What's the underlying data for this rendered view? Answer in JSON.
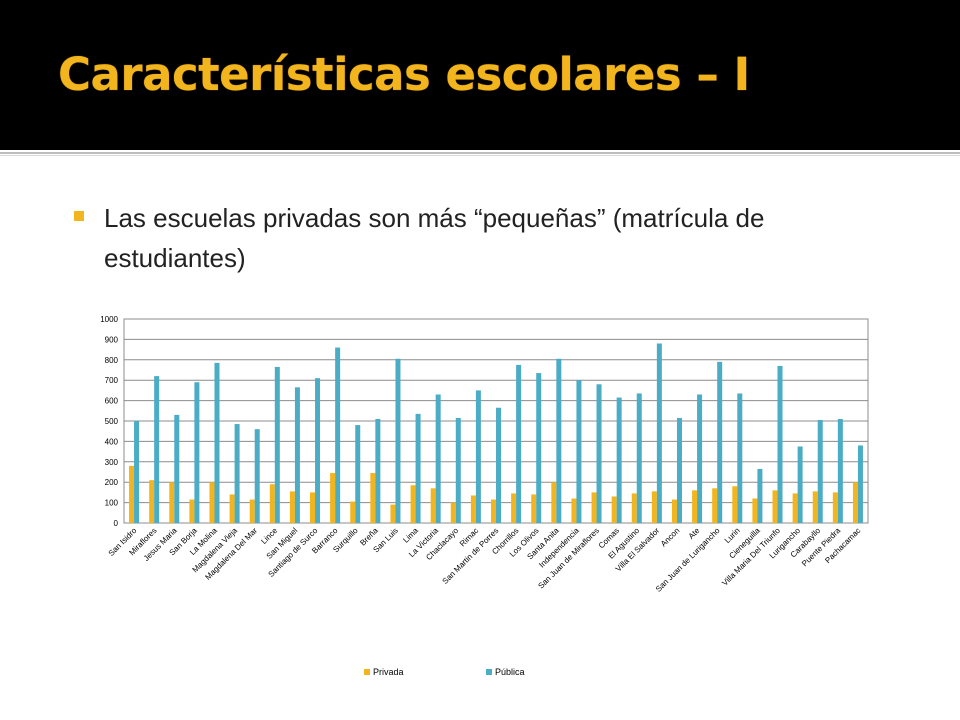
{
  "slide": {
    "title": "Características escolares – I",
    "bullet": "Las escuelas privadas son más “pequeñas” (matrícula de estudiantes)"
  },
  "colors": {
    "title_bg": "#000000",
    "title_text": "#f2b51d",
    "bullet": "#f2b51d",
    "privada": "#f2b51d",
    "publica": "#4bacc6",
    "grid": "#8c8c8c"
  },
  "chart_data": {
    "type": "bar",
    "ylim": [
      0,
      1000
    ],
    "yticks": [
      0,
      100,
      200,
      300,
      400,
      500,
      600,
      700,
      800,
      900,
      1000
    ],
    "grid": true,
    "legend_position": "bottom",
    "categories": [
      "San Isidro",
      "Miraflores",
      "Jesus Maria",
      "San Borja",
      "La Molina",
      "Magdalena Vieja",
      "Magdalena Del Mar",
      "Lince",
      "San Miguel",
      "Santiago de Surco",
      "Barranco",
      "Surquillo",
      "Breña",
      "San Luis",
      "Lima",
      "La Victoria",
      "Chaclacayo",
      "Rimac",
      "San Martin de Porres",
      "Chorrillos",
      "Los Olivos",
      "Santa Anita",
      "Independencia",
      "San Juan de Miraflores",
      "Comas",
      "El Agustino",
      "Villa El Salvador",
      "Ancon",
      "Ate",
      "San Juan de Lurigancho",
      "Lurin",
      "Cieneguilla",
      "Villa Maria Del Triunfo",
      "Lurigancho",
      "Carabayllo",
      "Puente Piedra",
      "Pachacamac"
    ],
    "series": [
      {
        "name": "Privada",
        "values": [
          280,
          210,
          200,
          115,
          200,
          140,
          115,
          190,
          155,
          150,
          245,
          105,
          245,
          90,
          185,
          170,
          100,
          135,
          115,
          145,
          140,
          200,
          120,
          150,
          130,
          145,
          155,
          115,
          160,
          170,
          180,
          120,
          160,
          145,
          155,
          150,
          200
        ]
      },
      {
        "name": "Pública",
        "values": [
          500,
          720,
          530,
          690,
          785,
          485,
          460,
          765,
          665,
          710,
          860,
          480,
          510,
          805,
          535,
          630,
          515,
          650,
          565,
          775,
          735,
          805,
          700,
          680,
          615,
          635,
          880,
          515,
          630,
          790,
          635,
          265,
          770,
          375,
          505,
          510,
          380
        ]
      }
    ]
  }
}
